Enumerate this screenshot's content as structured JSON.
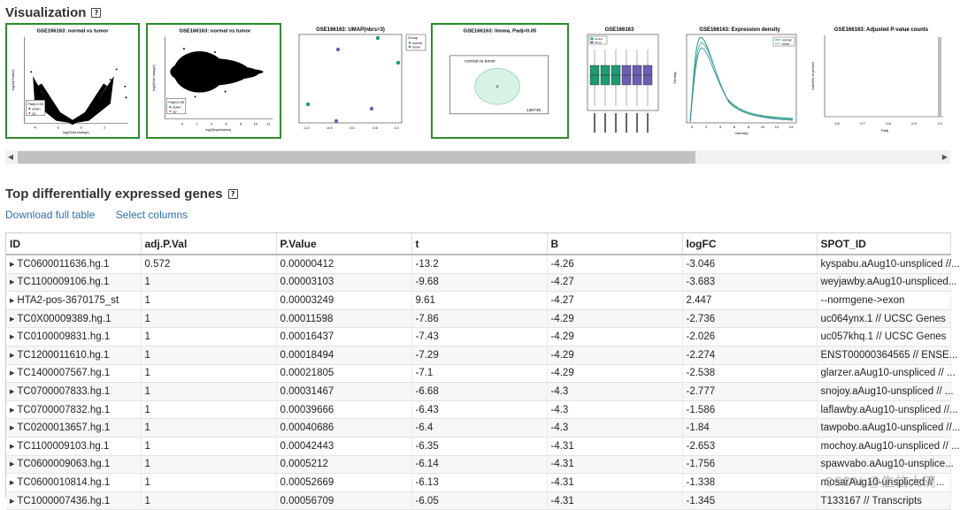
{
  "visualization": {
    "title": "Visualization",
    "help": "?",
    "thumbnails": [
      {
        "title": "GSE166163: normal vs tumor",
        "x_label": "log2(fold change)",
        "y_label": "-log10(Pvalue)",
        "legend_title": "Padj<0.05",
        "legend_items": [
          "down",
          "up"
        ],
        "x_ticks": [
          "-4",
          "-2",
          "0",
          "2"
        ]
      },
      {
        "title": "GSE166163: normal vs tumor",
        "x_label": "log2(expression)",
        "y_label": "log2(fold change)",
        "legend_title": "Padj<0.05",
        "legend_items": [
          "down",
          "up"
        ],
        "x_ticks": [
          "0",
          "2",
          "4",
          "6",
          "8",
          "10",
          "12"
        ]
      },
      {
        "title": "GSE166163: UMAP(nbrs=3)",
        "legend_title": "Group",
        "legend_items": [
          "normal",
          "tumor"
        ],
        "x_ticks": [
          "-1.0",
          "-0.5",
          "0.0",
          "0.5",
          "1.0"
        ]
      },
      {
        "title": "GSE166163: limma, Padj<0.05",
        "venn_label": "normal vs tumor",
        "venn_count": "0",
        "outside_count": "136745"
      },
      {
        "title": "GSE166163",
        "legend_items": [
          "control",
          "tumor"
        ]
      },
      {
        "title": "GSE166163: Expression density",
        "x_label": "Intensity",
        "y_label": "Density",
        "legend_items": [
          "normal",
          "tumor"
        ],
        "x_ticks": [
          "0",
          "2",
          "4",
          "6",
          "8",
          "10",
          "12",
          "14"
        ]
      },
      {
        "title": "GSE166163: Adjusted P-value counts",
        "x_label": "Padj",
        "y_label": "Number of probes",
        "x_ticks": [
          "0.6",
          "0.7",
          "0.8",
          "0.9",
          "1.0"
        ]
      }
    ],
    "colors": {
      "selected_border": "#2e8b2e",
      "normal": "#1f9a72",
      "tumor": "#6a5fb5"
    }
  },
  "genes": {
    "title": "Top differentially expressed genes",
    "help": "?",
    "download_label": "Download full table",
    "select_label": "Select columns",
    "columns": [
      "ID",
      "adj.P.Val",
      "P.Value",
      "t",
      "B",
      "logFC",
      "SPOT_ID"
    ],
    "rows": [
      [
        "TC0600011636.hg.1",
        "0.572",
        "0.00000412",
        "-13.2",
        "-4.26",
        "-3.046",
        "kyspabu.aAug10-unspliced //..."
      ],
      [
        "TC1100009106.hg.1",
        "1",
        "0.00003103",
        "-9.68",
        "-4.27",
        "-3.683",
        "weyjawby.aAug10-unspliced..."
      ],
      [
        "HTA2-pos-3670175_st",
        "1",
        "0.00003249",
        "9.61",
        "-4.27",
        "2.447",
        "--normgene->exon"
      ],
      [
        "TC0X00009389.hg.1",
        "1",
        "0.00011598",
        "-7.86",
        "-4.29",
        "-2.736",
        "uc064ynx.1 // UCSC Genes"
      ],
      [
        "TC0100009831.hg.1",
        "1",
        "0.00016437",
        "-7.43",
        "-4.29",
        "-2.026",
        "uc057khq.1 // UCSC Genes"
      ],
      [
        "TC1200011610.hg.1",
        "1",
        "0.00018494",
        "-7.29",
        "-4.29",
        "-2.274",
        "ENST00000364565 // ENSE..."
      ],
      [
        "TC1400007567.hg.1",
        "1",
        "0.00021805",
        "-7.1",
        "-4.29",
        "-2.538",
        "glarzer.aAug10-unspliced // ..."
      ],
      [
        "TC0700007833.hg.1",
        "1",
        "0.00031467",
        "-6.68",
        "-4.3",
        "-2.777",
        "snojoy.aAug10-unspliced // ..."
      ],
      [
        "TC0700007832.hg.1",
        "1",
        "0.00039666",
        "-6.43",
        "-4.3",
        "-1.586",
        "laflawby.aAug10-unspliced //..."
      ],
      [
        "TC0200013657.hg.1",
        "1",
        "0.00040686",
        "-6.4",
        "-4.3",
        "-1.84",
        "tawpobo.aAug10-unspliced //..."
      ],
      [
        "TC1100009103.hg.1",
        "1",
        "0.00042443",
        "-6.35",
        "-4.31",
        "-2.653",
        "mochoy.aAug10-unspliced // ..."
      ],
      [
        "TC0600009063.hg.1",
        "1",
        "0.0005212",
        "-6.14",
        "-4.31",
        "-1.756",
        "spawvabo.aAug10-unsplice..."
      ],
      [
        "TC0600010814.hg.1",
        "1",
        "0.00052669",
        "-6.13",
        "-4.31",
        "-1.338",
        "mosarAug10-unspliced // ..."
      ],
      [
        "TC1000007436.hg.1",
        "1",
        "0.00056709",
        "-6.05",
        "-4.31",
        "-1.345",
        "T133167 // Transcripts"
      ]
    ]
  },
  "watermark": "CSDN @生信大碗"
}
